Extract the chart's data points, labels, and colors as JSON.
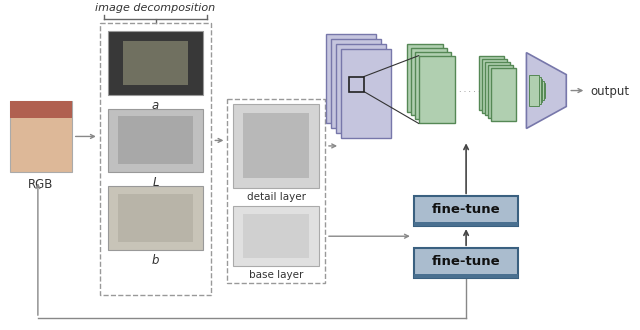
{
  "bg_color": "#ffffff",
  "rgb_label": "RGB",
  "decomp_label": "image decomposition",
  "a_label": "a",
  "L_label": "L",
  "b_label": "b",
  "detail_label": "detail layer",
  "base_label": "base layer",
  "output_label": "output",
  "finetune1_label": "fine-tune",
  "finetune2_label": "fine-tune",
  "dots_label": ". . . . .",
  "purple_color": "#c5c5de",
  "purple_edge": "#7777aa",
  "green_color": "#b0cfb0",
  "green_edge": "#558855",
  "finetune_face": "#aabcce",
  "finetune_edge": "#3a6080",
  "finetune_bar": "#4a7090",
  "arrow_color": "#888888",
  "text_color": "#333333",
  "dashed_color": "#999999"
}
